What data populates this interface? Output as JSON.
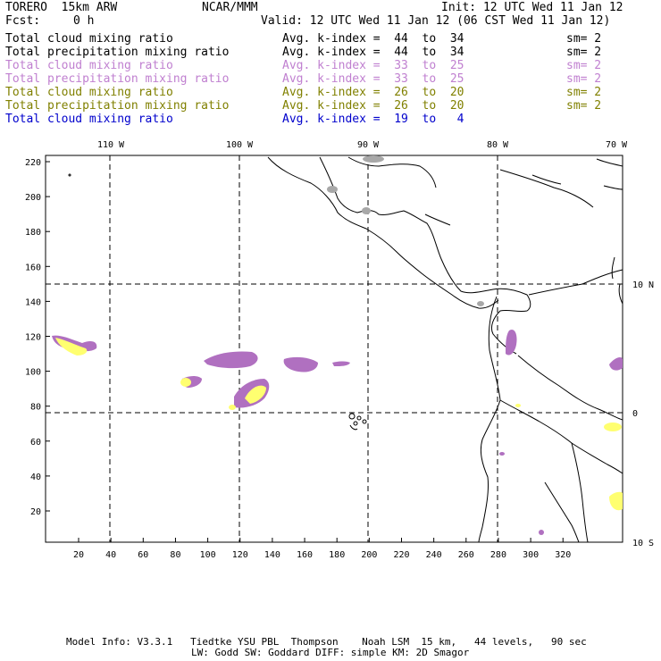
{
  "header": {
    "model": "TORERO  15km ARW",
    "org": "NCAR/MMM",
    "init": "Init: 12 UTC Wed 11 Jan 12",
    "fcst_label": "Fcst:",
    "fcst_value": "0 h",
    "valid": "Valid: 12 UTC Wed 11 Jan 12 (06 CST Wed 11 Jan 12)"
  },
  "legend": [
    {
      "label": "Total cloud mixing ratio",
      "avg": "Avg. k-index =  44  to  34",
      "sm": "sm= 2",
      "color": "#000000"
    },
    {
      "label": "Total precipitation mixing ratio",
      "avg": "Avg. k-index =  44  to  34",
      "sm": "sm= 2",
      "color": "#000000"
    },
    {
      "label": "Total cloud mixing ratio",
      "avg": "Avg. k-index =  33  to  25",
      "sm": "sm= 2",
      "color": "#c080d0"
    },
    {
      "label": "Total precipitation mixing ratio",
      "avg": "Avg. k-index =  33  to  25",
      "sm": "sm= 2",
      "color": "#c080d0"
    },
    {
      "label": "Total cloud mixing ratio",
      "avg": "Avg. k-index =  26  to  20",
      "sm": "sm= 2",
      "color": "#808000"
    },
    {
      "label": "Total precipitation mixing ratio",
      "avg": "Avg. k-index =  26  to  20",
      "sm": "sm= 2",
      "color": "#808000"
    },
    {
      "label": "Total cloud mixing ratio",
      "avg": "Avg. k-index =  19  to   4",
      "sm": "",
      "color": "#0000cc"
    }
  ],
  "map": {
    "lon_labels": [
      "110 W",
      "100 W",
      "90 W",
      "80 W",
      "70 W"
    ],
    "lat_labels": [
      "10 N",
      "0",
      "10 S"
    ],
    "y_ticks": [
      "220",
      "200",
      "180",
      "160",
      "140",
      "120",
      "100",
      "80",
      "60",
      "40",
      "20"
    ],
    "x_ticks": [
      "20",
      "40",
      "60",
      "80",
      "100",
      "120",
      "140",
      "160",
      "180",
      "200",
      "220",
      "240",
      "260",
      "280",
      "300",
      "320"
    ],
    "colors": {
      "coast": "#000000",
      "grid": "#000000",
      "grey": "#a8a8a8",
      "purple": "#b070c0",
      "yellow": "#ffff70"
    }
  },
  "footer": {
    "line1": "Model Info: V3.3.1   Tiedtke YSU PBL  Thompson    Noah LSM  15 km,   44 levels,   90 sec",
    "line2": "LW: Godd SW: Goddard DIFF: simple KM: 2D Smagor"
  }
}
